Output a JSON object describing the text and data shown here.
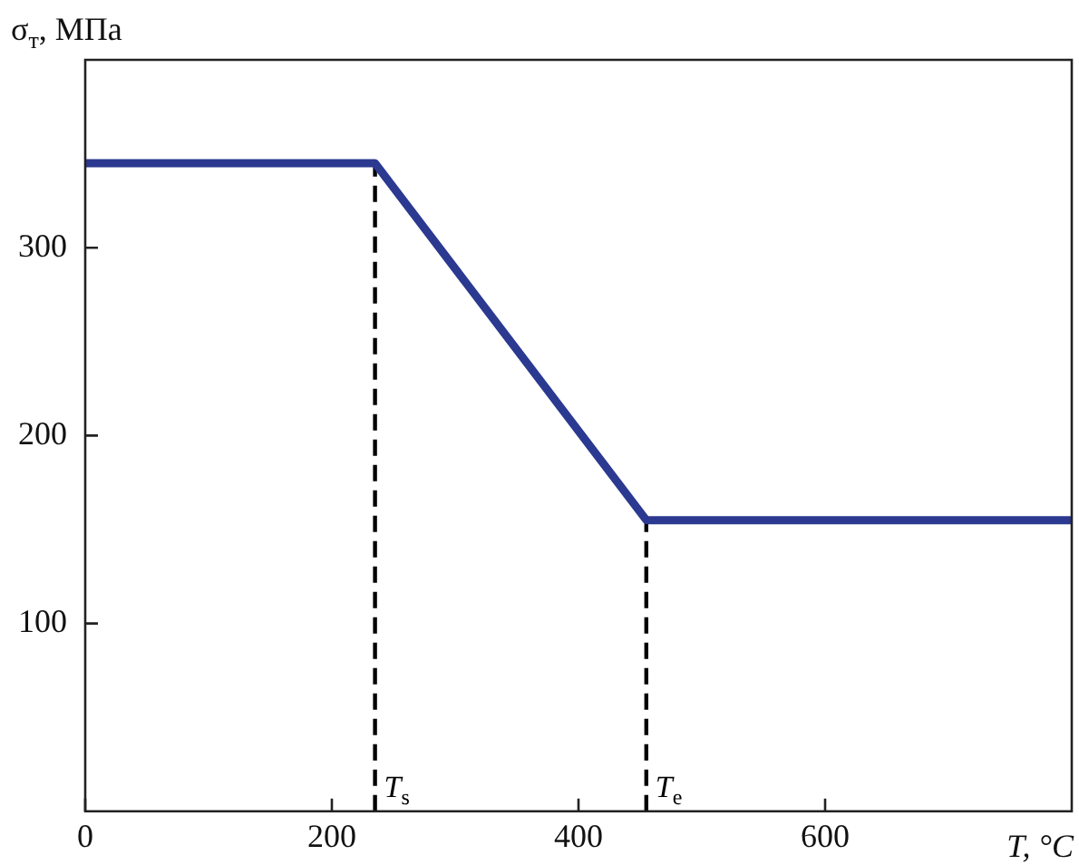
{
  "chart_data": {
    "type": "line",
    "xlabel": "T, °C",
    "ylabel": "σ$_{т}$, МПа",
    "x": [
      0,
      235,
      455,
      800
    ],
    "series": [
      {
        "color": "#2b3990",
        "values": [
          345,
          345,
          155,
          155
        ]
      }
    ],
    "xlim": [
      0,
      800
    ],
    "ylim": [
      0,
      400
    ],
    "xticks": [
      0,
      200,
      400,
      600
    ],
    "yticks": [
      100,
      200,
      300
    ],
    "ref_lines": [
      {
        "axis": "x",
        "value": 235,
        "label": "T$_{s}$",
        "color": "#000000",
        "line_style": "dashed"
      },
      {
        "axis": "x",
        "value": 455,
        "label": "T$_{e}$",
        "color": "#000000",
        "line_style": "dashed"
      }
    ],
    "grid": false,
    "legend": false,
    "marker": "none",
    "line_style": "solid"
  }
}
